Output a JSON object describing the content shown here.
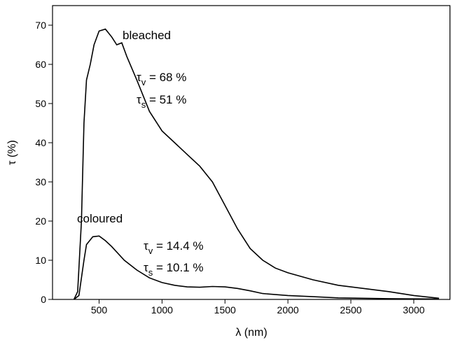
{
  "chart_data": {
    "type": "line",
    "x_label": "λ (nm)",
    "y_label": "τ (%)",
    "xlim": [
      130,
      3290
    ],
    "ylim": [
      0,
      75
    ],
    "xticks": [
      500,
      1000,
      1500,
      2000,
      2500,
      3000
    ],
    "yticks": [
      0,
      10,
      20,
      30,
      40,
      50,
      60,
      70
    ],
    "series": [
      {
        "name": "bleached",
        "color": "#000000",
        "x": [
          300,
          330,
          360,
          380,
          400,
          430,
          460,
          500,
          550,
          600,
          640,
          680,
          720,
          800,
          900,
          1000,
          1100,
          1200,
          1300,
          1400,
          1500,
          1600,
          1700,
          1800,
          1900,
          2000,
          2200,
          2400,
          2600,
          2800,
          3000,
          3200
        ],
        "values": [
          0,
          2,
          20,
          45,
          56,
          60,
          65,
          68.5,
          69,
          67,
          65,
          65.5,
          62,
          56,
          48,
          43,
          40,
          37,
          34,
          30,
          24,
          18,
          13,
          10,
          8,
          6.8,
          5,
          3.6,
          2.8,
          2,
          1,
          0.3
        ]
      },
      {
        "name": "coloured",
        "color": "#000000",
        "x": [
          300,
          340,
          380,
          400,
          450,
          500,
          550,
          600,
          700,
          800,
          900,
          1000,
          1100,
          1200,
          1300,
          1400,
          1500,
          1600,
          1700,
          1800,
          2000,
          2200,
          2400,
          2800,
          3200
        ],
        "values": [
          0,
          1,
          10,
          14,
          16,
          16.2,
          15,
          13.5,
          10,
          7.5,
          5.5,
          4.3,
          3.6,
          3.2,
          3.1,
          3.3,
          3.2,
          2.8,
          2.2,
          1.5,
          1.0,
          0.7,
          0.4,
          0.2,
          0.1
        ]
      }
    ],
    "annotations": [
      {
        "base": "τ",
        "sub": "v",
        "text": " = 68 %"
      },
      {
        "base": "τ",
        "sub": "s",
        "text": " = 51 %"
      },
      {
        "base": "τ",
        "sub": "v",
        "text": " = 14.4 %"
      },
      {
        "base": "τ",
        "sub": "s",
        "text": " = 10.1 %"
      }
    ]
  }
}
